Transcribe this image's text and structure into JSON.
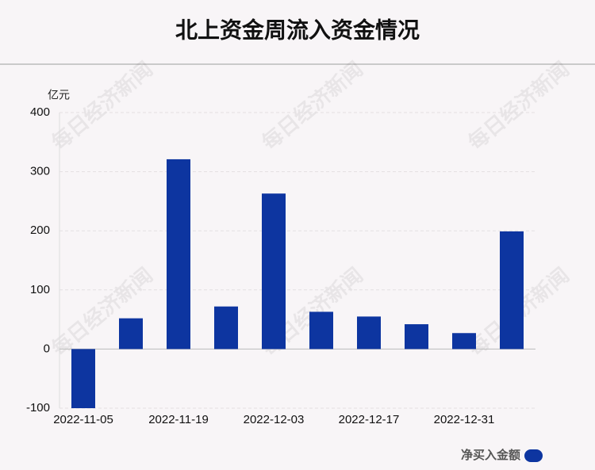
{
  "chart_data": {
    "type": "bar",
    "title": "北上资金周流入资金情况",
    "y_unit": "亿元",
    "watermark": "每日经济新闻",
    "categories": [
      "2022-11-05",
      null,
      "2022-11-19",
      null,
      "2022-12-03",
      null,
      "2022-12-17",
      null,
      "2022-12-31",
      null
    ],
    "series": [
      {
        "name": "净买入金额",
        "color": "#0d35a0",
        "values": [
          -100,
          52,
          321,
          72,
          263,
          63,
          55,
          42,
          27,
          199
        ]
      }
    ],
    "ylim": [
      -100,
      400
    ],
    "yticks": [
      -100,
      0,
      100,
      200,
      300,
      400
    ],
    "grid": true,
    "legend": "bottom-right"
  }
}
